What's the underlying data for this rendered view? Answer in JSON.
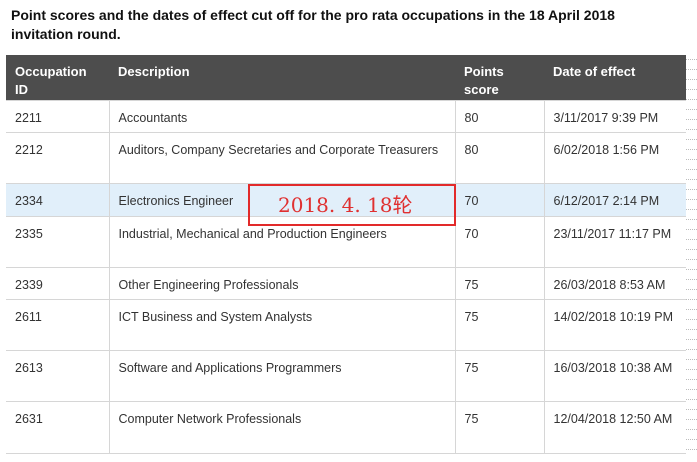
{
  "caption": "Point scores and the dates of effect cut off for the pro rata occupations in the 18 April 2018 invitation round.",
  "table": {
    "headers": {
      "occupation_id": "Occupation ID",
      "description": "Description",
      "points_score": "Points score",
      "date_of_effect": "Date of effect"
    },
    "rows": [
      {
        "id": "2211",
        "description": "Accountants",
        "points": "80",
        "date": "3/11/2017  9:39 PM"
      },
      {
        "id": "2212",
        "description": "Auditors, Company Secretaries and Corporate Treasurers",
        "points": "80",
        "date": "6/02/2018  1:56 PM"
      },
      {
        "id": "2334",
        "description": "Electronics Engineer",
        "points": "70",
        "date": "6/12/2017  2:14 PM"
      },
      {
        "id": "2335",
        "description": "Industrial, Mechanical and Production Engineers",
        "points": "70",
        "date": "23/11/2017  11:17 PM"
      },
      {
        "id": "2339",
        "description": "Other Engineering Professionals",
        "points": "75",
        "date": "26/03/2018  8:53 AM"
      },
      {
        "id": "2611",
        "description": "ICT Business and System Analysts",
        "points": "75",
        "date": "14/02/2018  10:19 PM"
      },
      {
        "id": "2613",
        "description": "Software and Applications Programmers",
        "points": "75",
        "date": "16/03/2018  10:38 AM"
      },
      {
        "id": "2631",
        "description": "Computer Network Professionals",
        "points": "75",
        "date": "12/04/2018  12:50 AM"
      }
    ]
  },
  "annotation": {
    "text": "2018. 4. 18轮",
    "color": "#e03030"
  },
  "colors": {
    "header_bg": "#4d4d4d",
    "highlight_row_bg": "#e1effa"
  }
}
